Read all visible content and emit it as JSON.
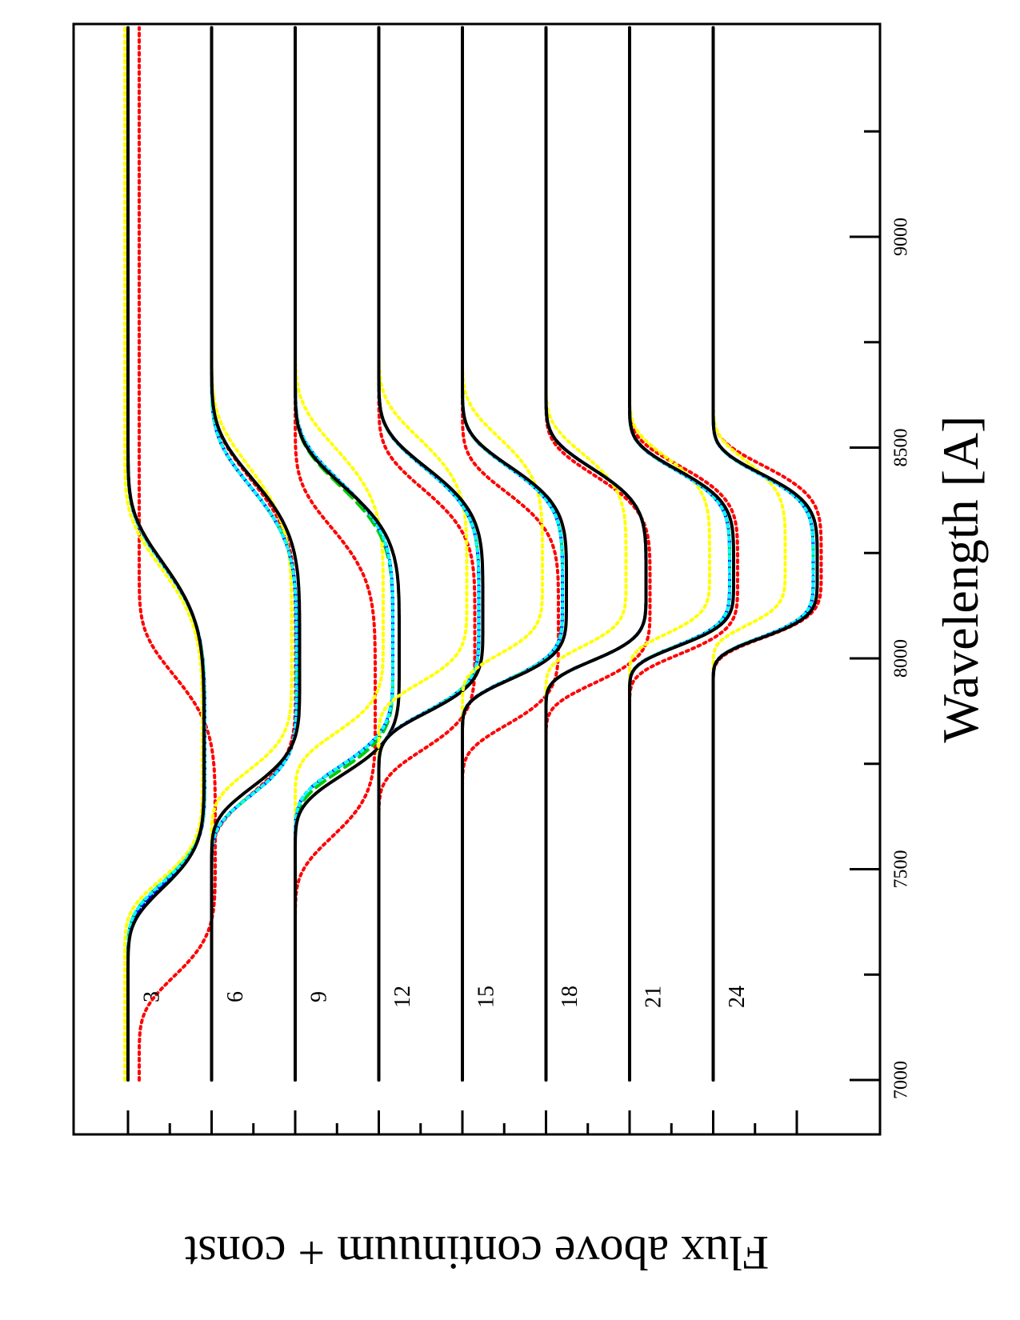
{
  "chart_data": {
    "type": "line",
    "title": "",
    "xlabel": "Wavelength [A]",
    "ylabel": "Flux above continuum + const",
    "xlim": [
      7000,
      9600
    ],
    "x_ticks": [
      "7000",
      "7500",
      "8000",
      "8500",
      "9000"
    ],
    "orientation": "rotated 90 degrees clockwise",
    "grid": false,
    "legend": "none",
    "epoch_labels": [
      "3",
      "6",
      "9",
      "12",
      "15",
      "18",
      "21",
      "24"
    ],
    "series_styles": [
      {
        "color": "#000000",
        "dash": "solid"
      },
      {
        "color": "#ff0000",
        "dash": "dotted"
      },
      {
        "color": "#ffff00",
        "dash": "dotted"
      },
      {
        "color": "#00cc00",
        "dash": "dashed"
      },
      {
        "color": "#0000ff",
        "dash": "dash-dot"
      },
      {
        "color": "#00ffff",
        "dash": "dotted"
      }
    ],
    "panels": [
      {
        "label": "3",
        "series_params": [
          [
            7770,
            330,
            0.95,
            480,
            5,
            0.0
          ],
          [
            7560,
            330,
            0.95,
            420,
            5,
            0.14
          ],
          [
            7760,
            300,
            0.97,
            480,
            5,
            -0.04
          ],
          [
            7765,
            310,
            0.96,
            480,
            5,
            0.0
          ],
          [
            7765,
            315,
            0.96,
            480,
            5,
            0.0
          ],
          [
            7765,
            310,
            0.96,
            480,
            5,
            0.0
          ]
        ]
      },
      {
        "label": "6",
        "series_params": [
          [
            7980,
            300,
            1.1,
            470,
            5,
            0.0
          ],
          [
            7980,
            320,
            1.05,
            470,
            5,
            0.0
          ],
          [
            8000,
            280,
            1.0,
            480,
            5,
            0.0
          ],
          [
            7960,
            300,
            1.06,
            470,
            5,
            0.0
          ],
          [
            7960,
            300,
            1.06,
            470,
            5,
            0.0
          ],
          [
            7960,
            300,
            1.06,
            470,
            5,
            0.0
          ]
        ]
      },
      {
        "label": "9",
        "series_params": [
          [
            8010,
            300,
            1.3,
            420,
            5,
            0.0
          ],
          [
            7900,
            340,
            1.0,
            430,
            5,
            0.0
          ],
          [
            8080,
            270,
            1.1,
            440,
            5,
            0.0
          ],
          [
            8010,
            290,
            1.22,
            420,
            5,
            0.0
          ],
          [
            8020,
            290,
            1.22,
            420,
            5,
            0.0
          ],
          [
            8020,
            290,
            1.22,
            420,
            5,
            0.0
          ]
        ]
      },
      {
        "label": "12",
        "series_params": [
          [
            8100,
            240,
            1.3,
            370,
            5,
            0.0
          ],
          [
            8050,
            280,
            1.2,
            370,
            5,
            0.0
          ],
          [
            8160,
            230,
            1.1,
            380,
            5,
            0.0
          ],
          [
            8100,
            240,
            1.25,
            370,
            5,
            0.0
          ],
          [
            8100,
            240,
            1.25,
            370,
            5,
            0.0
          ],
          [
            8100,
            240,
            1.25,
            370,
            5,
            0.0
          ]
        ]
      },
      {
        "label": "15",
        "series_params": [
          [
            8150,
            210,
            1.3,
            320,
            5,
            0.0
          ],
          [
            8080,
            250,
            1.2,
            330,
            5,
            0.0
          ],
          [
            8200,
            200,
            1.0,
            340,
            5,
            0.0
          ],
          [
            8150,
            210,
            1.25,
            320,
            5,
            0.0
          ],
          [
            8150,
            210,
            1.25,
            320,
            5,
            0.0
          ],
          [
            8150,
            210,
            1.25,
            320,
            5,
            0.0
          ]
        ]
      },
      {
        "label": "18",
        "series_params": [
          [
            8175,
            190,
            1.25,
            290,
            5,
            0.0
          ],
          [
            8150,
            220,
            1.3,
            300,
            5,
            0.0
          ],
          [
            8200,
            180,
            1.0,
            300,
            5,
            0.0
          ],
          [
            8175,
            190,
            1.25,
            290,
            5,
            0.0
          ],
          [
            8175,
            190,
            1.25,
            290,
            5,
            0.0
          ],
          [
            8175,
            190,
            1.25,
            290,
            5,
            0.0
          ]
        ]
      },
      {
        "label": "21",
        "series_params": [
          [
            8200,
            180,
            1.3,
            260,
            5,
            0.0
          ],
          [
            8200,
            200,
            1.35,
            270,
            5,
            0.0
          ],
          [
            8220,
            170,
            1.0,
            270,
            5,
            0.0
          ],
          [
            8200,
            180,
            1.25,
            260,
            5,
            0.0
          ],
          [
            8200,
            180,
            1.25,
            260,
            5,
            0.0
          ],
          [
            8200,
            180,
            1.25,
            260,
            5,
            0.0
          ]
        ]
      },
      {
        "label": "24",
        "series_params": [
          [
            8210,
            170,
            1.3,
            240,
            5,
            0.0
          ],
          [
            8220,
            180,
            1.35,
            250,
            5,
            0.0
          ],
          [
            8230,
            160,
            0.9,
            250,
            5,
            0.0
          ],
          [
            8210,
            170,
            1.25,
            240,
            5,
            0.0
          ],
          [
            8210,
            170,
            1.25,
            240,
            5,
            0.0
          ],
          [
            8210,
            170,
            1.25,
            240,
            5,
            0.0
          ]
        ]
      }
    ]
  }
}
